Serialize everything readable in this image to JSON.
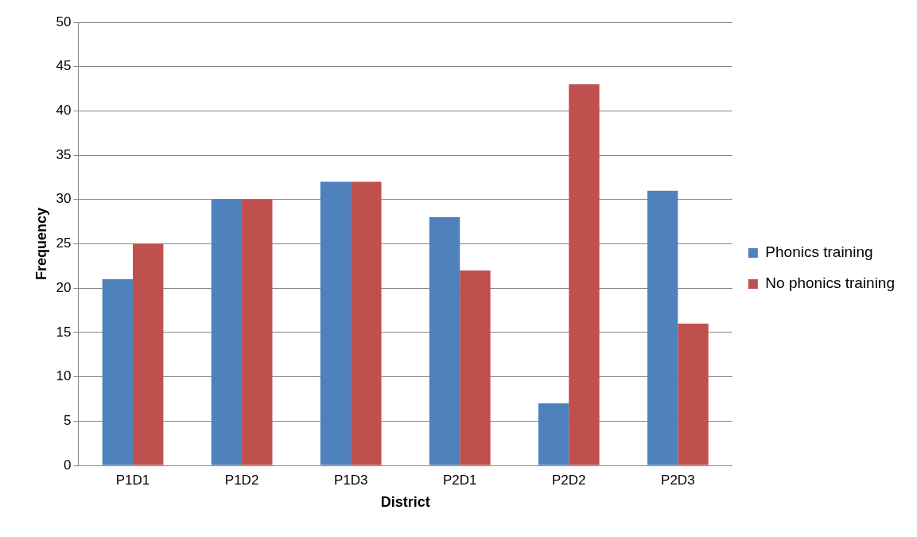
{
  "chart_data": {
    "type": "bar",
    "xlabel": "District",
    "ylabel": "Frequency",
    "categories": [
      "P1D1",
      "P1D2",
      "P1D3",
      "P2D1",
      "P2D2",
      "P2D3"
    ],
    "series": [
      {
        "name": "Phonics training",
        "color": "#4f81bd",
        "values": [
          21,
          30,
          32,
          28,
          7,
          31
        ]
      },
      {
        "name": "No phonics training",
        "color": "#c0504d",
        "values": [
          25,
          30,
          32,
          22,
          43,
          16
        ]
      }
    ],
    "ylim": [
      0,
      50
    ],
    "yticks": [
      0,
      5,
      10,
      15,
      20,
      25,
      30,
      35,
      40,
      45,
      50
    ],
    "grid": "y",
    "legend": "right"
  }
}
